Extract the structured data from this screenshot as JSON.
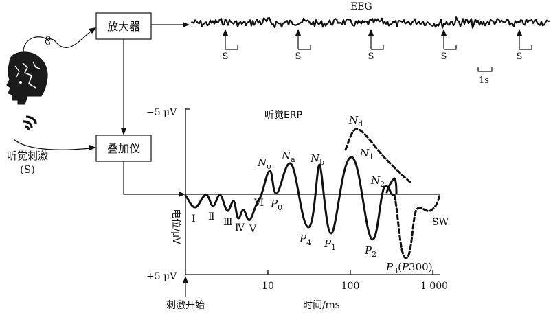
{
  "boxes": {
    "amplifier": "放大器",
    "averager": "叠加仪"
  },
  "eeg": {
    "label": "EEG",
    "stimulus_marker": "S",
    "stimulus_count": 5,
    "scale_label": "1s"
  },
  "stimulus": {
    "label_line1": "听觉刺激",
    "label_line2": "(S)"
  },
  "chart_data": {
    "type": "line",
    "title": "听觉ERP",
    "xlabel": "时间/ms",
    "ylabel": "电位/μV",
    "x_scale": "log",
    "x_ticks": [
      "10",
      "100",
      "1 000"
    ],
    "y_ticks": [
      "−5 μV",
      "+5 μV"
    ],
    "y_axis_inverted": true,
    "onset_label": "刺激开始",
    "components": {
      "I": "Ⅰ",
      "II": "Ⅱ",
      "III": "Ⅲ",
      "IV": "Ⅳ",
      "V": "Ⅴ",
      "VI": "Ⅵ",
      "P0": {
        "base": "P",
        "sub": "0"
      },
      "No": {
        "base": "N",
        "sub": "o"
      },
      "Na": {
        "base": "N",
        "sub": "a"
      },
      "Nb": {
        "base": "N",
        "sub": "b"
      },
      "N1": {
        "base": "N",
        "sub": "1"
      },
      "N2": {
        "base": "N",
        "sub": "2"
      },
      "Nd": {
        "base": "N",
        "sub": "d"
      },
      "P4": {
        "base": "P",
        "sub": "4"
      },
      "P1": {
        "base": "P",
        "sub": "1"
      },
      "P2": {
        "base": "P",
        "sub": "2"
      },
      "P3": {
        "base": "P",
        "sub": "3",
        "paren_open": "(",
        "paren_base": "P",
        "paren_num": "300",
        "paren_close": ")"
      },
      "SW": "SW"
    }
  }
}
